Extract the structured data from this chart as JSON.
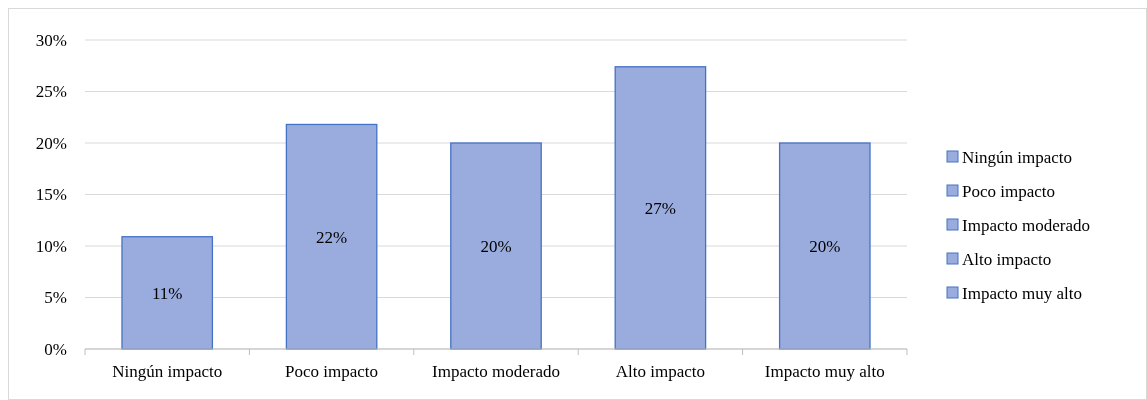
{
  "chart_data": {
    "type": "bar",
    "stacked": true,
    "categories": [
      "Ningún impacto",
      "Poco impacto",
      "Impacto moderado",
      "Alto impacto",
      "Impacto muy alto"
    ],
    "series": [
      {
        "name": "Ningún impacto",
        "color": "#9aacdd",
        "values": [
          10.9,
          null,
          null,
          null,
          null
        ],
        "value_labels": [
          "11%",
          null,
          null,
          null,
          null
        ]
      },
      {
        "name": "Poco impacto",
        "color": "#9aacdd",
        "values": [
          null,
          21.8,
          null,
          null,
          null
        ],
        "value_labels": [
          null,
          "22%",
          null,
          null,
          null
        ]
      },
      {
        "name": "Impacto moderado",
        "color": "#9aacdd",
        "values": [
          null,
          null,
          20.0,
          null,
          null
        ],
        "value_labels": [
          null,
          null,
          "20%",
          null,
          null
        ]
      },
      {
        "name": "Alto impacto",
        "color": "#9aacdd",
        "values": [
          null,
          null,
          null,
          27.4,
          null
        ],
        "value_labels": [
          null,
          null,
          null,
          "27%",
          null
        ]
      },
      {
        "name": "Impacto muy alto",
        "color": "#9aacdd",
        "values": [
          null,
          null,
          null,
          null,
          20.0
        ],
        "value_labels": [
          null,
          null,
          null,
          null,
          "20%"
        ]
      }
    ],
    "ylim": [
      0,
      30
    ],
    "yticks": [
      {
        "value": 0,
        "label": "0%"
      },
      {
        "value": 5,
        "label": "5%"
      },
      {
        "value": 10,
        "label": "10%"
      },
      {
        "value": 15,
        "label": "15%"
      },
      {
        "value": 20,
        "label": "20%"
      },
      {
        "value": 25,
        "label": "25%"
      },
      {
        "value": 30,
        "label": "30%"
      }
    ],
    "grid": "y",
    "legend": "right"
  }
}
